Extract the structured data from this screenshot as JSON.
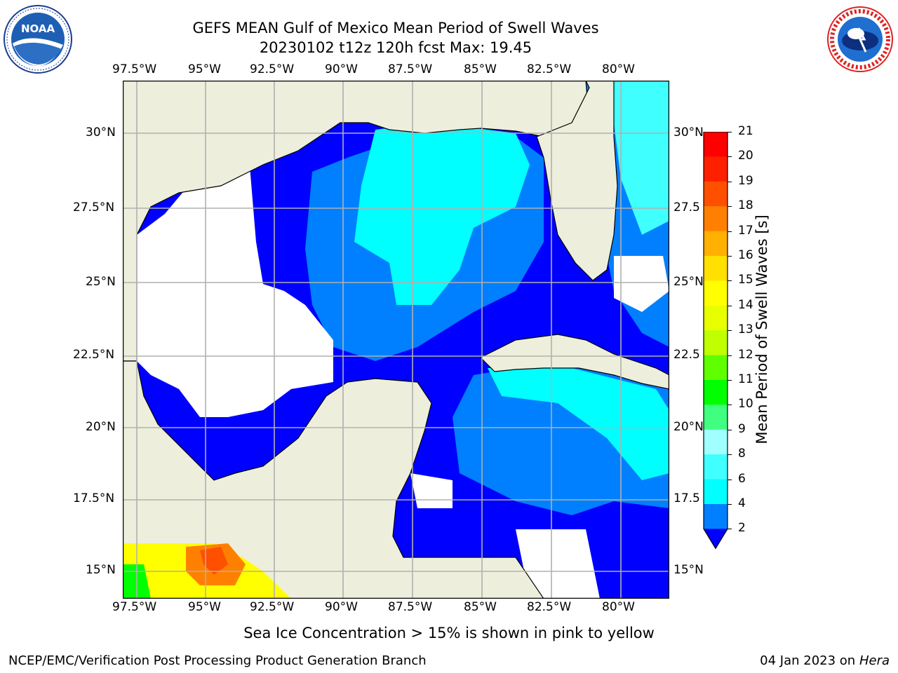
{
  "title": {
    "line1": "GEFS MEAN Gulf of Mexico Mean Period of Swell Waves",
    "line2": "20230102 t12z 120h fcst   Max: 19.45"
  },
  "logos": {
    "left": "NOAA",
    "left_ring_text": "NATIONAL OCEANIC AND ATMOSPHERIC ADMINISTRATION · U.S. DEPARTMENT OF COMMERCE",
    "right_ring_text": "NATIONAL WEATHER SERVICE"
  },
  "axes": {
    "lon_ticks": [
      "97.5°W",
      "95°W",
      "92.5°W",
      "90°W",
      "87.5°W",
      "85°W",
      "82.5°W",
      "80°W"
    ],
    "lat_ticks_left": [
      "30°N",
      "27.5°N",
      "25°N",
      "22.5°N",
      "20°N",
      "17.5°N",
      "15°N"
    ],
    "lat_ticks_right": [
      "30°N",
      "27.5",
      "25°N",
      "22.5",
      "20°N",
      "17.5",
      "15°N"
    ]
  },
  "colorbar": {
    "label": "Mean Period of Swell Waves [s]",
    "ticks": [
      "21",
      "20",
      "19",
      "18",
      "17",
      "16",
      "15",
      "14",
      "13",
      "12",
      "11",
      "10",
      "9",
      "8",
      "6",
      "4",
      "2"
    ],
    "colors": {
      "c2": "#0000ff",
      "c4": "#0080ff",
      "c6": "#00ffff",
      "c8": "#40ffff",
      "c9": "#a0ffff",
      "c10": "#40ff80",
      "c11": "#00ff00",
      "c12": "#60ff00",
      "c13": "#c0ff00",
      "c14": "#e8ff00",
      "c15": "#ffff00",
      "c16": "#ffe000",
      "c17": "#ffb000",
      "c18": "#ff8000",
      "c19": "#ff5000",
      "c20": "#ff2000",
      "c21": "#ff0000"
    }
  },
  "map": {
    "land_color": "#eeeedd",
    "water_blue": "#0000ff",
    "water_mid": "#0080ff",
    "water_cyan": "#00ffff",
    "grid_color": "#b0b0b0"
  },
  "footer": {
    "note": "Sea Ice Concentration > 15% is shown in pink to yellow",
    "left": "NCEP/EMC/Verification Post Processing Product Generation Branch",
    "date": "04 Jan 2023 on ",
    "machine": "Hera"
  }
}
